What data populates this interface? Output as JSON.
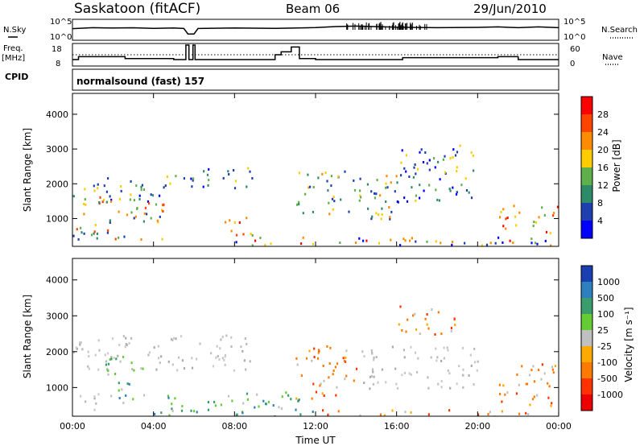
{
  "header": {
    "station": "Saskatoon (fitACF)",
    "beam": "Beam 06",
    "date": "29/Jun/2010"
  },
  "noise_panel": {
    "left_label": "N.Sky",
    "right_label": "N.Search",
    "top_tick_left": "10^5",
    "bottom_tick_left": "10^0",
    "top_tick_right": "10^5",
    "bottom_tick_right": "10^0"
  },
  "freq_panel": {
    "left_label_line1": "Freq.",
    "left_label_line2": "[MHz]",
    "right_label": "Nave",
    "left_ticks": [
      "18",
      "8"
    ],
    "right_ticks": [
      "60",
      "0"
    ]
  },
  "cpid_panel": {
    "label": "CPID",
    "value": "normalsound (fast) 157"
  },
  "power_panel": {
    "ylabel": "Slant Range [km]",
    "colorbar_label": "Power [dB]",
    "colorbar_ticks": [
      "28",
      "24",
      "20",
      "16",
      "12",
      "8",
      "4"
    ],
    "colorbar_colors": [
      "#ff0000",
      "#ff4400",
      "#ff8c00",
      "#ffcc00",
      "#5fb04a",
      "#2e8b6a",
      "#1f3fb0",
      "#0000ff"
    ]
  },
  "velocity_panel": {
    "ylabel": "Slant Range [km]",
    "colorbar_label": "Velocity [m s⁻¹]",
    "colorbar_ticks": [
      "1000",
      "500",
      "100",
      "25",
      "-25",
      "-100",
      "-500",
      "-1000"
    ],
    "colorbar_colors": [
      "#1a3fb0",
      "#2e7fbf",
      "#3a9d6b",
      "#66cc33",
      "#c0c0c0",
      "#ffaa00",
      "#ff7a00",
      "#ff3300",
      "#ee0000"
    ]
  },
  "x_axis": {
    "label": "Time UT",
    "ticks": [
      "00:00",
      "04:00",
      "08:00",
      "12:00",
      "16:00",
      "20:00",
      "00:00"
    ]
  },
  "chart_data": [
    {
      "type": "line",
      "title": "Saskatoon (fitACF) Beam 06 29/Jun/2010",
      "panel": "noise",
      "xlabel": "",
      "ylabel": "N.Sky",
      "ylim": [
        1,
        100000
      ],
      "log_scale": true,
      "x": [
        0,
        1,
        2,
        3,
        4,
        5,
        5.5,
        5.7,
        6,
        6.2,
        8,
        10,
        12,
        13,
        14,
        16,
        18,
        20,
        21,
        22,
        23,
        24
      ],
      "series": [
        {
          "name": "N.Sky",
          "values": [
            800,
            1500,
            1200,
            1400,
            1000,
            1300,
            900,
            30,
            30,
            900,
            1300,
            1000,
            1600,
            3000,
            4000,
            2000,
            1500,
            1800,
            2500,
            1500,
            2500,
            1500
          ]
        }
      ]
    },
    {
      "type": "line",
      "panel": "frequency",
      "ylabel": "Freq. [MHz]",
      "ylim": [
        8,
        18
      ],
      "x": [
        0,
        0.3,
        2,
        2.6,
        3,
        5,
        5.6,
        5.75,
        5.95,
        6.05,
        10,
        10.3,
        10.8,
        11.2,
        12,
        16,
        16.3,
        20,
        21,
        22,
        24
      ],
      "series": [
        {
          "name": "",
          "values": [
            10.5,
            12,
            12,
            11,
            11,
            10.5,
            18,
            10.5,
            18,
            10.5,
            13,
            14.5,
            17,
            11,
            10.5,
            10.5,
            11.5,
            11.5,
            12,
            10.5,
            10.5
          ]
        }
      ],
      "reference_line": 12.5
    },
    {
      "type": "heatmap",
      "panel": "power",
      "xlabel": "Time UT",
      "ylabel": "Slant Range [km]",
      "xlim": [
        0,
        24
      ],
      "ylim": [
        200,
        4600
      ],
      "yticks": [
        1000,
        2000,
        3000,
        4000
      ],
      "colorbar": {
        "label": "Power [dB]",
        "ticks": [
          4,
          8,
          12,
          16,
          20,
          24,
          28
        ]
      },
      "echo_regions": [
        {
          "t_start": 0,
          "t_end": 4.8,
          "r_start": 1500,
          "r_end": 2200,
          "level": "low-mid"
        },
        {
          "t_start": 0,
          "t_end": 4.5,
          "r_start": 400,
          "r_end": 1700,
          "level": "mid-high"
        },
        {
          "t_start": 4.5,
          "t_end": 9,
          "r_start": 1900,
          "r_end": 2500,
          "level": "low-mid"
        },
        {
          "t_start": 7.5,
          "t_end": 9,
          "r_start": 400,
          "r_end": 1100,
          "level": "high"
        },
        {
          "t_start": 11,
          "t_end": 16,
          "r_start": 1000,
          "r_end": 2400,
          "level": "mid"
        },
        {
          "t_start": 16,
          "t_end": 20,
          "r_start": 1500,
          "r_end": 3200,
          "level": "low-mid"
        },
        {
          "t_start": 21,
          "t_end": 24,
          "r_start": 600,
          "r_end": 1400,
          "level": "high"
        },
        {
          "t_start": 8,
          "t_end": 24,
          "r_start": 200,
          "r_end": 500,
          "level": "mixed"
        }
      ]
    },
    {
      "type": "heatmap",
      "panel": "velocity",
      "xlabel": "Time UT",
      "ylabel": "Slant Range [km]",
      "xlim": [
        0,
        24
      ],
      "ylim": [
        200,
        4600
      ],
      "yticks": [
        1000,
        2000,
        3000,
        4000
      ],
      "colorbar": {
        "label": "Velocity [m s⁻¹]",
        "ticks": [
          -1000,
          -500,
          -100,
          -25,
          25,
          100,
          500,
          1000
        ]
      },
      "echo_regions": [
        {
          "t_start": 0,
          "t_end": 9,
          "r_start": 1500,
          "r_end": 2500,
          "velocity": "near-zero"
        },
        {
          "t_start": 1.5,
          "t_end": 3.5,
          "r_start": 600,
          "r_end": 1900,
          "velocity": "positive"
        },
        {
          "t_start": 0,
          "t_end": 1.5,
          "r_start": 400,
          "r_end": 900,
          "velocity": "near-zero"
        },
        {
          "t_start": 11,
          "t_end": 14,
          "r_start": 700,
          "r_end": 2200,
          "velocity": "negative"
        },
        {
          "t_start": 14,
          "t_end": 20,
          "r_start": 1000,
          "r_end": 2200,
          "velocity": "near-zero"
        },
        {
          "t_start": 16,
          "t_end": 19,
          "r_start": 2500,
          "r_end": 3300,
          "velocity": "negative"
        },
        {
          "t_start": 21,
          "t_end": 24,
          "r_start": 500,
          "r_end": 1700,
          "velocity": "negative"
        },
        {
          "t_start": 4,
          "t_end": 12,
          "r_start": 200,
          "r_end": 900,
          "velocity": "positive"
        },
        {
          "t_start": 12,
          "t_end": 24,
          "r_start": 200,
          "r_end": 400,
          "velocity": "negative"
        }
      ]
    }
  ]
}
